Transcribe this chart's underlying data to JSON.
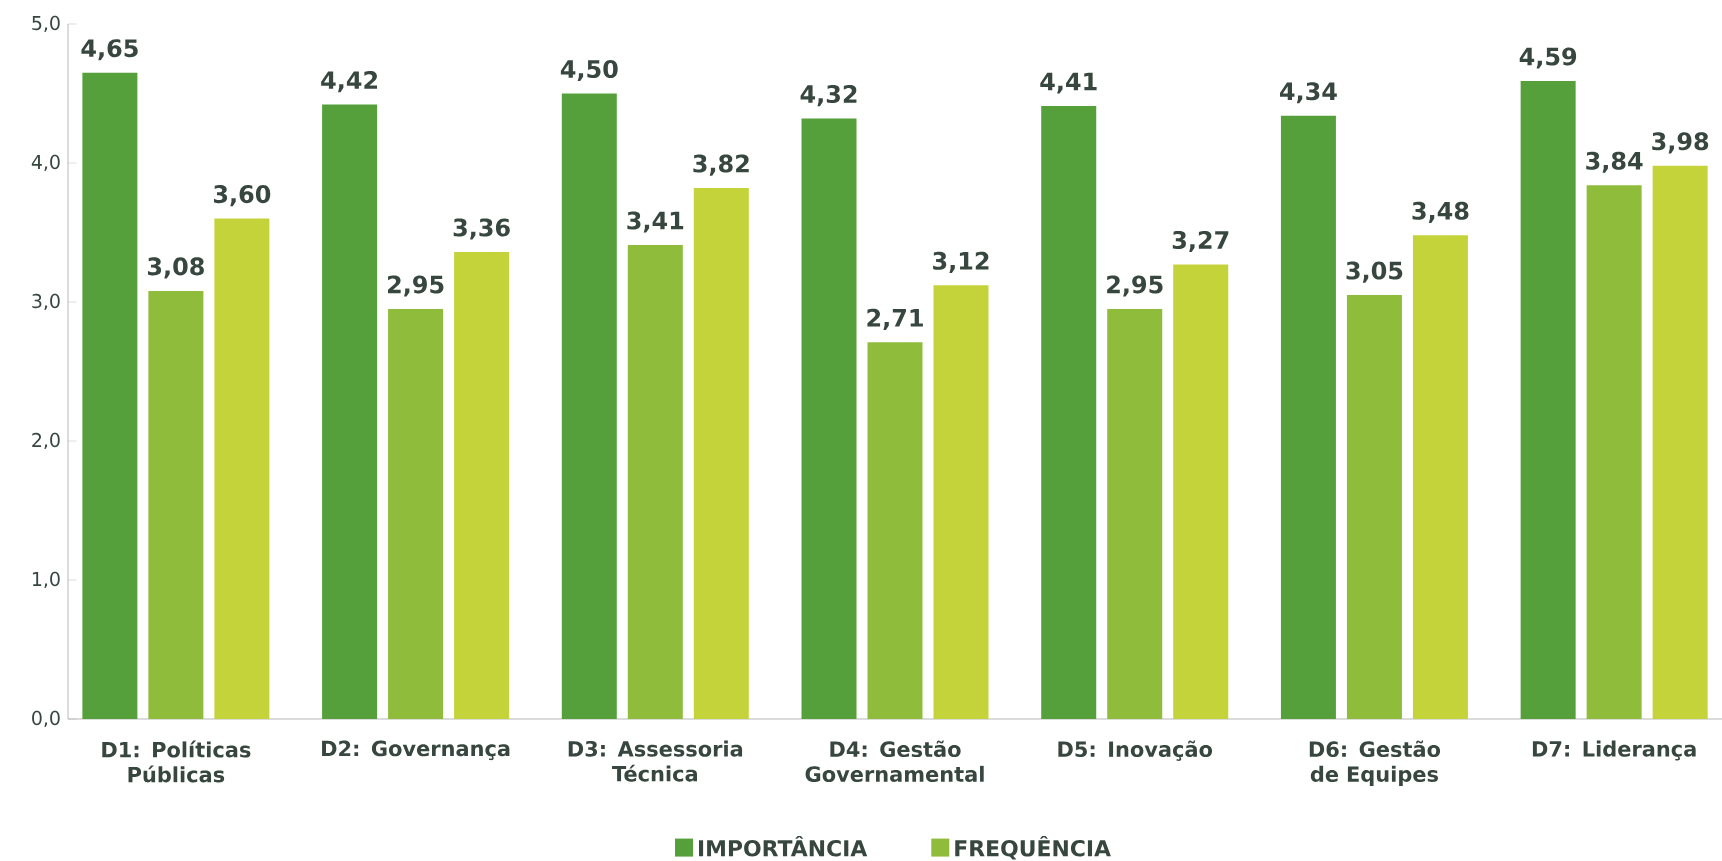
{
  "chart_data": {
    "type": "bar",
    "categories": [
      "D1: Políticas Públicas",
      "D2: Governança",
      "D3: Assessoria Técnica",
      "D4: Gestão Governamental",
      "D5: Inovação",
      "D6: Gestão de Equipes",
      "D7: Liderança"
    ],
    "series": [
      {
        "name": "IMPORTÂNCIA",
        "color": "#55a03a",
        "values": [
          4.65,
          4.42,
          4.5,
          4.32,
          4.41,
          4.34,
          4.59
        ],
        "value_labels": [
          "4,65",
          "4,42",
          "4,50",
          "4,32",
          "4,41",
          "4,34",
          "4,59"
        ]
      },
      {
        "name": "FREQUÊNCIA",
        "color": "#8fbc3a",
        "values": [
          3.08,
          2.95,
          3.41,
          2.71,
          2.95,
          3.05,
          3.84
        ],
        "value_labels": [
          "3,08",
          "2,95",
          "3,41",
          "2,71",
          "2,95",
          "3,05",
          "3,84"
        ]
      },
      {
        "color": "#c5d33a",
        "values": [
          3.6,
          3.36,
          3.82,
          3.12,
          3.27,
          3.48,
          3.98
        ],
        "value_labels": [
          "3,60",
          "3,36",
          "3,82",
          "3,12",
          "3,27",
          "3,48",
          "3,98"
        ]
      }
    ],
    "ylim": [
      0,
      5
    ],
    "yticks": [
      {
        "value": 0,
        "label": "0,0"
      },
      {
        "value": 1,
        "label": "1,0"
      },
      {
        "value": 2,
        "label": "2,0"
      },
      {
        "value": 3,
        "label": "3,0"
      },
      {
        "value": 4,
        "label": "4,0"
      },
      {
        "value": 5,
        "label": "5,0"
      }
    ],
    "grid": false,
    "legend": "bottom"
  }
}
